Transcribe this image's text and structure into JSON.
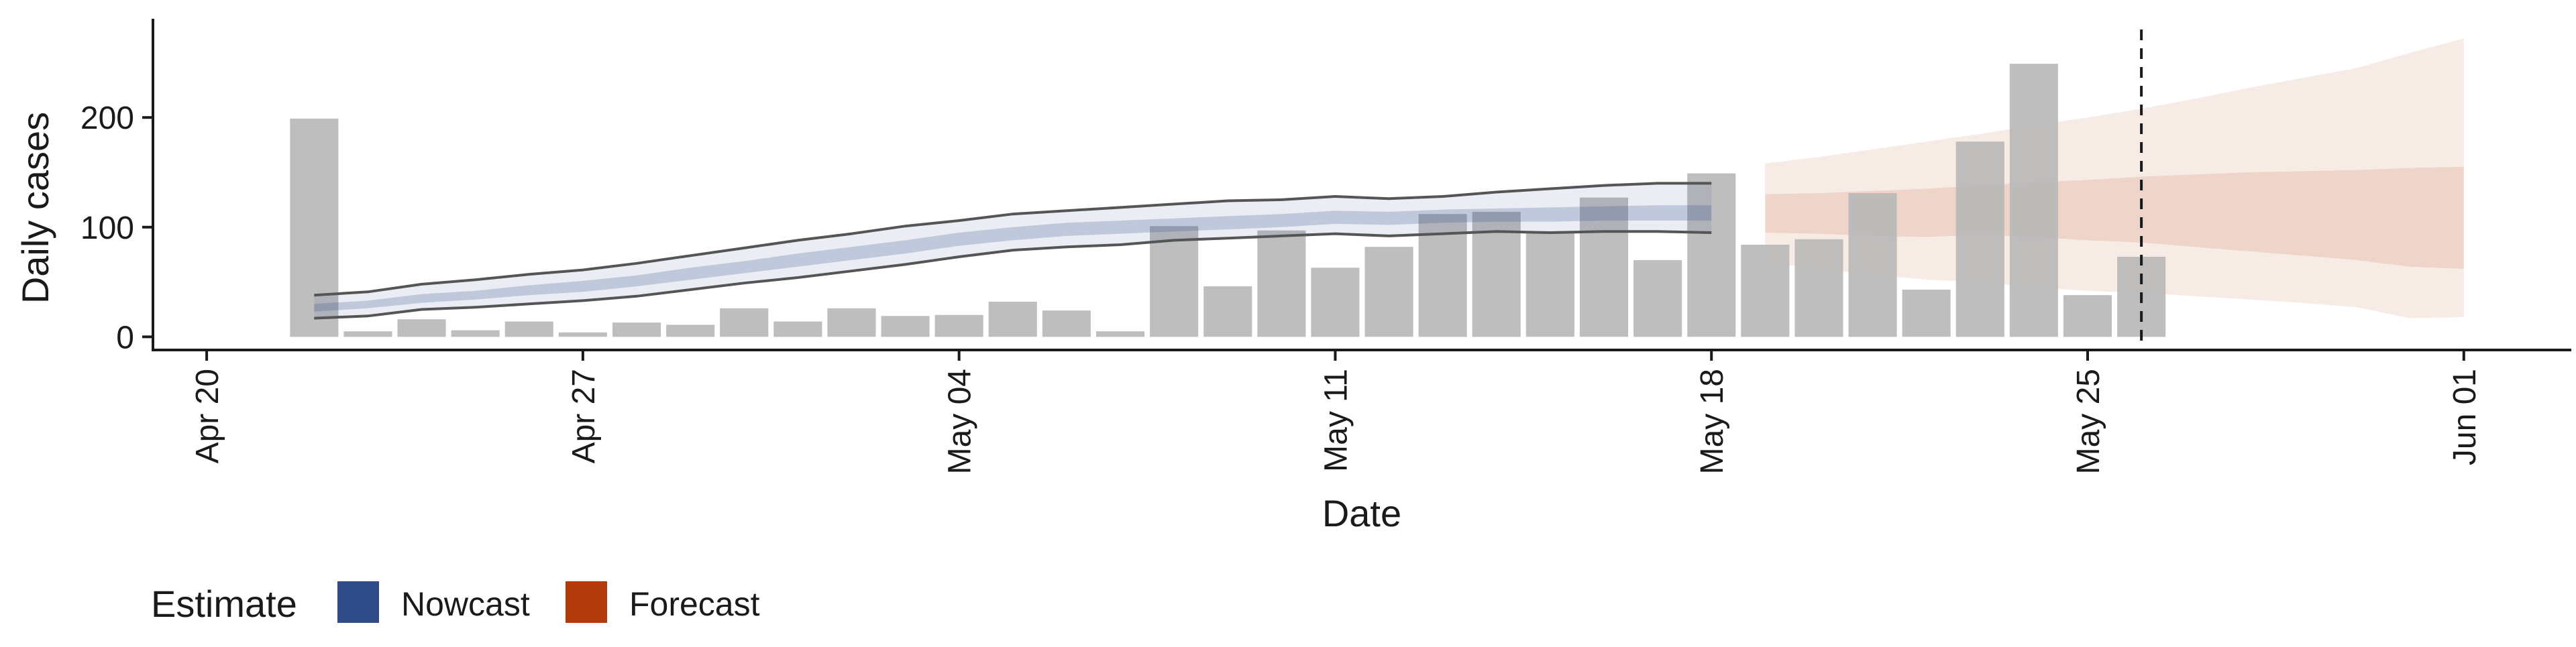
{
  "chart_data": {
    "type": "bar",
    "xlabel": "Date",
    "ylabel": "Daily cases",
    "x_ticks": [
      "Apr 20",
      "Apr 27",
      "May 04",
      "May 11",
      "May 18",
      "May 25",
      "Jun 01"
    ],
    "x_tick_dates": [
      "2020-04-20",
      "2020-04-27",
      "2020-05-04",
      "2020-05-11",
      "2020-05-18",
      "2020-05-25",
      "2020-06-01"
    ],
    "y_ticks": [
      0,
      100,
      200
    ],
    "ylim": [
      -12,
      290
    ],
    "xlim": [
      "2020-04-19",
      "2020-06-03"
    ],
    "grid": false,
    "legend_position": "bottom-left",
    "forecast_date_line": "2020-05-26",
    "bars": {
      "x": [
        "2020-04-22",
        "2020-04-23",
        "2020-04-24",
        "2020-04-25",
        "2020-04-26",
        "2020-04-27",
        "2020-04-28",
        "2020-04-29",
        "2020-04-30",
        "2020-05-01",
        "2020-05-02",
        "2020-05-03",
        "2020-05-04",
        "2020-05-05",
        "2020-05-06",
        "2020-05-07",
        "2020-05-08",
        "2020-05-09",
        "2020-05-10",
        "2020-05-11",
        "2020-05-12",
        "2020-05-13",
        "2020-05-14",
        "2020-05-15",
        "2020-05-16",
        "2020-05-17",
        "2020-05-18",
        "2020-05-19",
        "2020-05-20",
        "2020-05-21",
        "2020-05-22",
        "2020-05-23",
        "2020-05-24",
        "2020-05-25",
        "2020-05-26"
      ],
      "values": [
        199,
        5,
        16,
        6,
        14,
        4,
        13,
        11,
        26,
        14,
        26,
        19,
        20,
        32,
        24,
        5,
        101,
        46,
        97,
        63,
        82,
        112,
        114,
        96,
        127,
        70,
        149,
        84,
        89,
        131,
        43,
        178,
        249,
        38,
        73
      ]
    },
    "nowcast": {
      "x": [
        "2020-04-22",
        "2020-04-23",
        "2020-04-24",
        "2020-04-25",
        "2020-04-26",
        "2020-04-27",
        "2020-04-28",
        "2020-04-29",
        "2020-04-30",
        "2020-05-01",
        "2020-05-02",
        "2020-05-03",
        "2020-05-04",
        "2020-05-05",
        "2020-05-06",
        "2020-05-07",
        "2020-05-08",
        "2020-05-09",
        "2020-05-10",
        "2020-05-11",
        "2020-05-12",
        "2020-05-13",
        "2020-05-14",
        "2020-05-15",
        "2020-05-16",
        "2020-05-17",
        "2020-05-18"
      ],
      "lower90": [
        17,
        19,
        25,
        27,
        30,
        33,
        37,
        43,
        49,
        54,
        60,
        66,
        73,
        79,
        82,
        84,
        88,
        90,
        92,
        94,
        92,
        94,
        96,
        95,
        96,
        96,
        95
      ],
      "lower50": [
        23,
        26,
        31,
        34,
        38,
        41,
        46,
        52,
        58,
        64,
        70,
        76,
        83,
        88,
        92,
        94,
        96,
        98,
        100,
        103,
        102,
        104,
        105,
        105,
        106,
        106,
        106
      ],
      "upper50": [
        30,
        33,
        39,
        42,
        47,
        51,
        56,
        63,
        69,
        76,
        82,
        88,
        95,
        100,
        104,
        106,
        108,
        110,
        112,
        115,
        114,
        116,
        117,
        118,
        119,
        120,
        120
      ],
      "upper90": [
        38,
        41,
        48,
        52,
        57,
        61,
        67,
        74,
        81,
        88,
        94,
        101,
        106,
        112,
        115,
        118,
        121,
        124,
        125,
        128,
        126,
        128,
        132,
        135,
        138,
        140,
        140
      ]
    },
    "forecast": {
      "x": [
        "2020-05-19",
        "2020-05-20",
        "2020-05-21",
        "2020-05-22",
        "2020-05-23",
        "2020-05-24",
        "2020-05-25",
        "2020-05-26",
        "2020-05-27",
        "2020-05-28",
        "2020-05-29",
        "2020-05-30",
        "2020-05-31",
        "2020-06-01"
      ],
      "lower90": [
        68,
        62,
        57,
        52,
        50,
        45,
        42,
        40,
        37,
        34,
        31,
        27,
        17,
        18
      ],
      "lower50": [
        95,
        94,
        92,
        91,
        93,
        91,
        88,
        86,
        82,
        78,
        74,
        70,
        64,
        62
      ],
      "upper50": [
        130,
        131,
        133,
        135,
        138,
        141,
        143,
        146,
        148,
        150,
        151,
        152,
        154,
        155
      ],
      "upper90": [
        158,
        164,
        171,
        178,
        185,
        193,
        200,
        208,
        217,
        227,
        236,
        245,
        259,
        272
      ]
    },
    "legend": {
      "title": "Estimate",
      "items": [
        {
          "label": "Nowcast",
          "color": "#2f4b8a"
        },
        {
          "label": "Forecast",
          "color": "#b33a0a"
        }
      ]
    },
    "colors": {
      "bar": "#b9b9b9",
      "nowcast_band": "#2f4b8a",
      "forecast_band": "#b33a0a",
      "bound_line": "#555555",
      "axis": "#1a1a1a"
    }
  }
}
